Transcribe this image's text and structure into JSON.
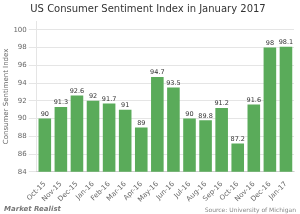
{
  "chart_data": {
    "type": "bar",
    "title": "US Consumer Sentiment Index in January 2017",
    "ylabel": "Consumer Sentiment Index",
    "categories": [
      "Oct-15",
      "Nov-15",
      "Dec-15",
      "Jan-16",
      "Feb-16",
      "Mar-16",
      "Apr-16",
      "May-16",
      "Jun-16",
      "Jul-16",
      "Aug-16",
      "Sep-16",
      "Oct-16",
      "Nov-16",
      "Dec-16",
      "Jan-17"
    ],
    "values": [
      90,
      91.3,
      92.6,
      92,
      91.7,
      91,
      89,
      94.7,
      93.5,
      90,
      89.8,
      91.2,
      87.2,
      91.6,
      98,
      98.1
    ],
    "color": "#5aab5a",
    "ylim": [
      84,
      101
    ],
    "yticks": [
      84,
      86,
      88,
      90,
      92,
      94,
      96,
      98,
      100
    ],
    "grid": true,
    "data_labels": true,
    "annotations": [
      "Market Realist",
      "Source: University of Michigan"
    ]
  }
}
